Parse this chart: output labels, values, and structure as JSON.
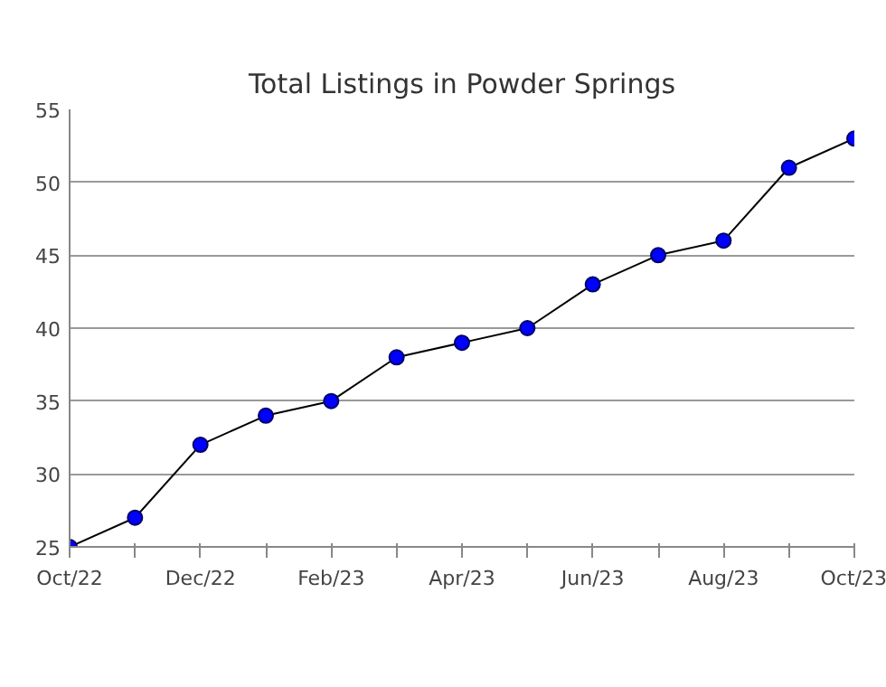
{
  "chart_data": {
    "type": "line",
    "title": "Total Listings in Powder Springs",
    "categories": [
      "Oct/22",
      null,
      "Dec/22",
      null,
      "Feb/23",
      null,
      "Apr/23",
      null,
      "Jun/23",
      null,
      "Aug/23",
      null,
      "Oct/23"
    ],
    "series": [
      {
        "color": "#0000ff",
        "values": [
          25,
          27,
          32,
          34,
          35,
          38,
          39,
          40,
          43,
          45,
          46,
          51,
          53
        ]
      }
    ],
    "ylim": [
      25,
      55
    ],
    "yticks": [
      25,
      30,
      35,
      40,
      45,
      50,
      55
    ],
    "grid": "y",
    "marker": "circle",
    "line_style": "solid"
  }
}
